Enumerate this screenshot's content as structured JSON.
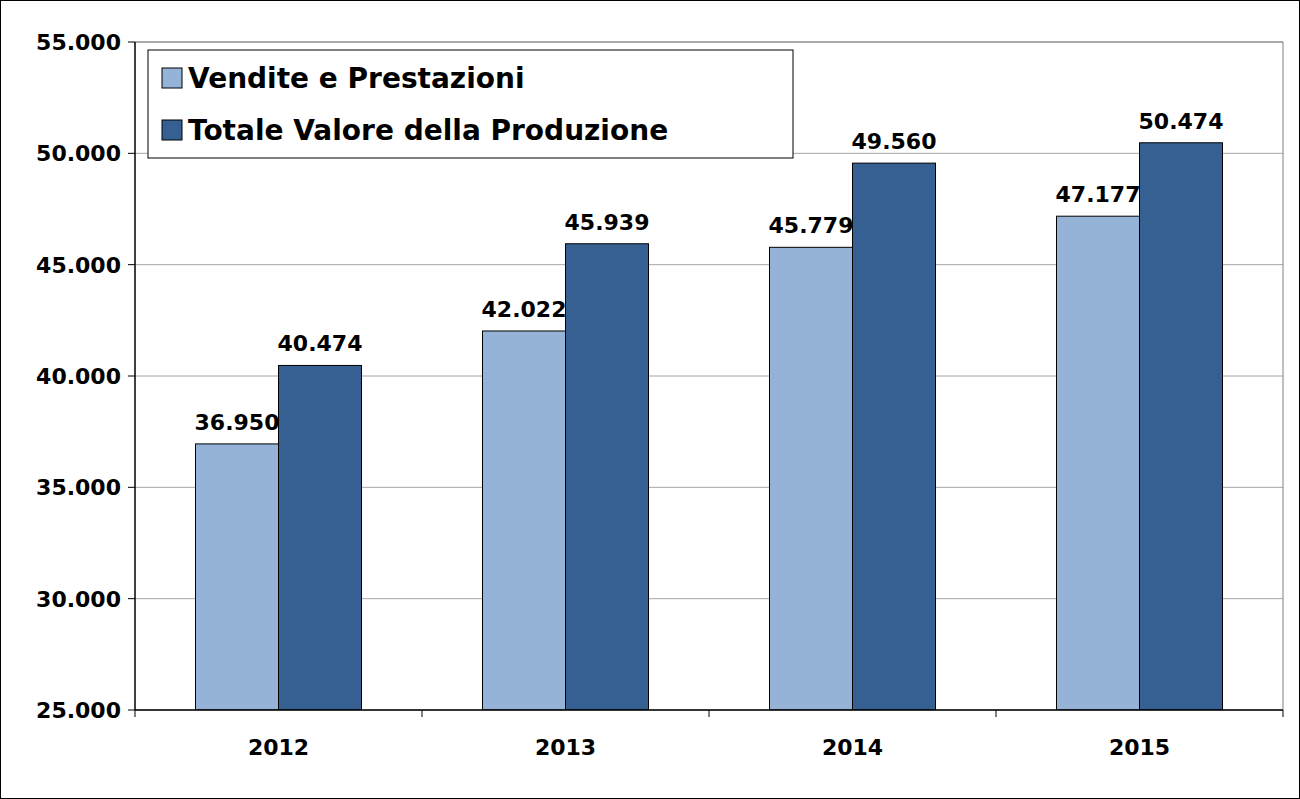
{
  "chart_data": {
    "type": "bar",
    "categories": [
      "2012",
      "2013",
      "2014",
      "2015"
    ],
    "series": [
      {
        "name": "Vendite e Prestazioni",
        "color": "#95b3d7",
        "values": [
          36950,
          42022,
          45779,
          47177
        ],
        "value_labels": [
          "36.950",
          "42.022",
          "45.779",
          "47.177"
        ]
      },
      {
        "name": "Totale Valore della Produzione",
        "color": "#366092",
        "values": [
          40474,
          45939,
          49560,
          50474
        ],
        "value_labels": [
          "40.474",
          "45.939",
          "49.560",
          "50.474"
        ]
      }
    ],
    "ylim": [
      25000,
      55000
    ],
    "yticks": [
      {
        "value": 25000,
        "label": "25.000"
      },
      {
        "value": 30000,
        "label": "30.000"
      },
      {
        "value": 35000,
        "label": "35.000"
      },
      {
        "value": 40000,
        "label": "40.000"
      },
      {
        "value": 45000,
        "label": "45.000"
      },
      {
        "value": 50000,
        "label": "50.000"
      },
      {
        "value": 55000,
        "label": "55.000"
      }
    ],
    "grid": true,
    "data_labels": true,
    "legend": "upper left"
  }
}
